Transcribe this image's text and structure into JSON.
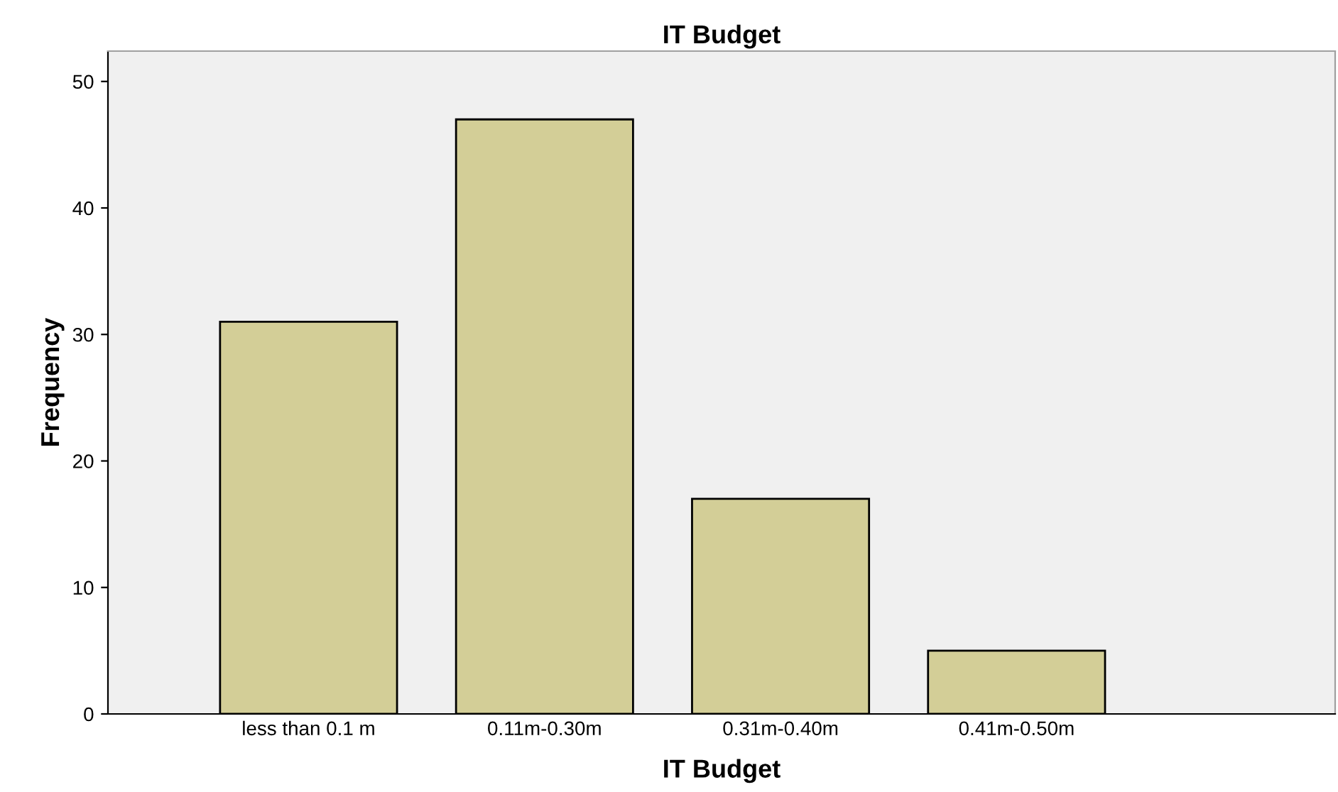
{
  "chart_data": {
    "type": "bar",
    "title": "IT Budget",
    "xlabel": "IT Budget",
    "ylabel": "Frequency",
    "categories": [
      "less than 0.1 m",
      "0.11m-0.30m",
      "0.31m-0.40m",
      "0.41m-0.50m"
    ],
    "values": [
      31,
      47,
      17,
      5
    ],
    "color": "#d3ce97",
    "ylim": [
      0,
      52.4
    ],
    "yticks": [
      0,
      10,
      20,
      30,
      40,
      50
    ],
    "grid": false,
    "legend": false
  }
}
